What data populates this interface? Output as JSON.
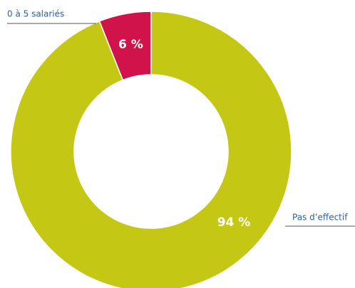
{
  "chart_data": {
    "type": "donut",
    "categories": [
      "0 à 5 salariés",
      "Pas d’effectif"
    ],
    "values": [
      6,
      94
    ],
    "value_labels": [
      "6 %",
      "94 %"
    ],
    "colors": [
      "#d0134b",
      "#c4c814"
    ]
  }
}
